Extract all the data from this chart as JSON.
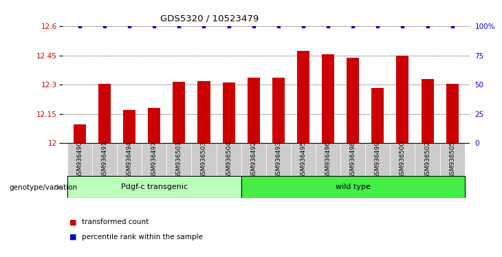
{
  "title": "GDS5320 / 10523479",
  "categories": [
    "GSM936490",
    "GSM936491",
    "GSM936494",
    "GSM936497",
    "GSM936501",
    "GSM936503",
    "GSM936504",
    "GSM936492",
    "GSM936493",
    "GSM936495",
    "GSM936496",
    "GSM936498",
    "GSM936499",
    "GSM936500",
    "GSM936502",
    "GSM936505"
  ],
  "bar_values": [
    12.095,
    12.305,
    12.17,
    12.18,
    12.315,
    12.32,
    12.31,
    12.335,
    12.335,
    12.475,
    12.455,
    12.44,
    12.285,
    12.45,
    12.33,
    12.305
  ],
  "percentile_values": [
    100,
    100,
    100,
    100,
    100,
    100,
    100,
    100,
    100,
    100,
    100,
    100,
    100,
    100,
    100,
    100
  ],
  "bar_color": "#cc0000",
  "percentile_color": "#0000cc",
  "ylim_left": [
    12.0,
    12.6
  ],
  "ylim_right": [
    0,
    100
  ],
  "yticks_left": [
    12.0,
    12.15,
    12.3,
    12.45,
    12.6
  ],
  "yticks_right": [
    0,
    25,
    50,
    75,
    100
  ],
  "ytick_labels_left": [
    "12",
    "12.15",
    "12.3",
    "12.45",
    "12.6"
  ],
  "ytick_labels_right": [
    "0",
    "25",
    "50",
    "75",
    "100%"
  ],
  "group1_label": "Pdgf-c transgenic",
  "group2_label": "wild type",
  "group1_count": 7,
  "group2_count": 9,
  "group1_color": "#bbffbb",
  "group2_color": "#44ee44",
  "genotype_label": "genotype/variation",
  "legend_bar_label": "transformed count",
  "legend_percentile_label": "percentile rank within the sample",
  "background_color": "#ffffff",
  "tick_label_color_left": "#cc0000",
  "tick_label_color_right": "#0000cc",
  "bar_width": 0.5,
  "xtick_bg_color": "#cccccc"
}
